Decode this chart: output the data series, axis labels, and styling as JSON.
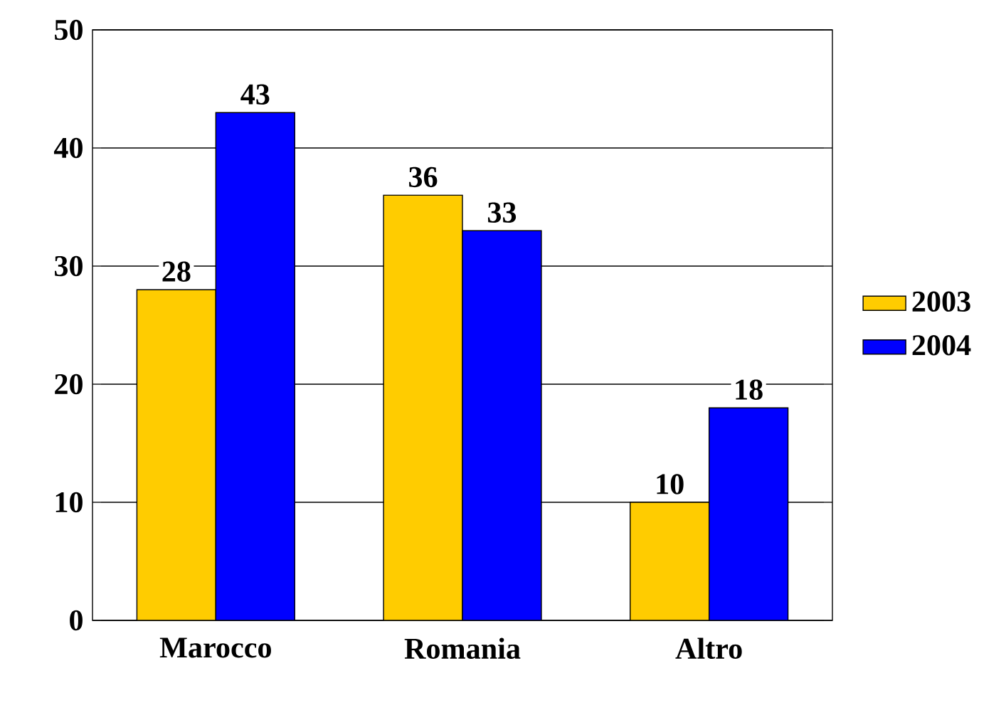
{
  "chart_data": {
    "type": "bar",
    "categories": [
      "Marocco",
      "Romania",
      "Altro"
    ],
    "series": [
      {
        "name": "2003",
        "color": "#ffcc00",
        "values": [
          28,
          36,
          10
        ]
      },
      {
        "name": "2004",
        "color": "#0000ff",
        "values": [
          43,
          33,
          18
        ]
      }
    ],
    "ylim": [
      0,
      50
    ],
    "yticks": [
      0,
      10,
      20,
      30,
      40,
      50
    ],
    "grid": "y",
    "legend": "right",
    "data_labels": true
  }
}
